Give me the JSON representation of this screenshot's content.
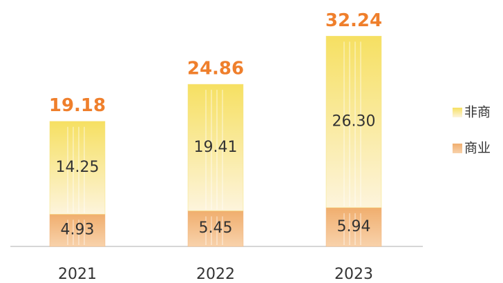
{
  "chart_data": {
    "type": "stacked_bar",
    "categories": [
      "2021",
      "2022",
      "2023"
    ],
    "series": [
      {
        "name": "商业",
        "color": "#f2b57a",
        "values": [
          4.93,
          5.45,
          5.94
        ]
      },
      {
        "name": "非商",
        "color": "#f6e27a",
        "values": [
          14.25,
          19.41,
          26.3
        ],
        "value_labels": [
          "14.25",
          "19.41",
          "26.30"
        ]
      }
    ],
    "totals": [
      19.18,
      24.86,
      32.24
    ],
    "total_color": "#ef7f2c"
  }
}
